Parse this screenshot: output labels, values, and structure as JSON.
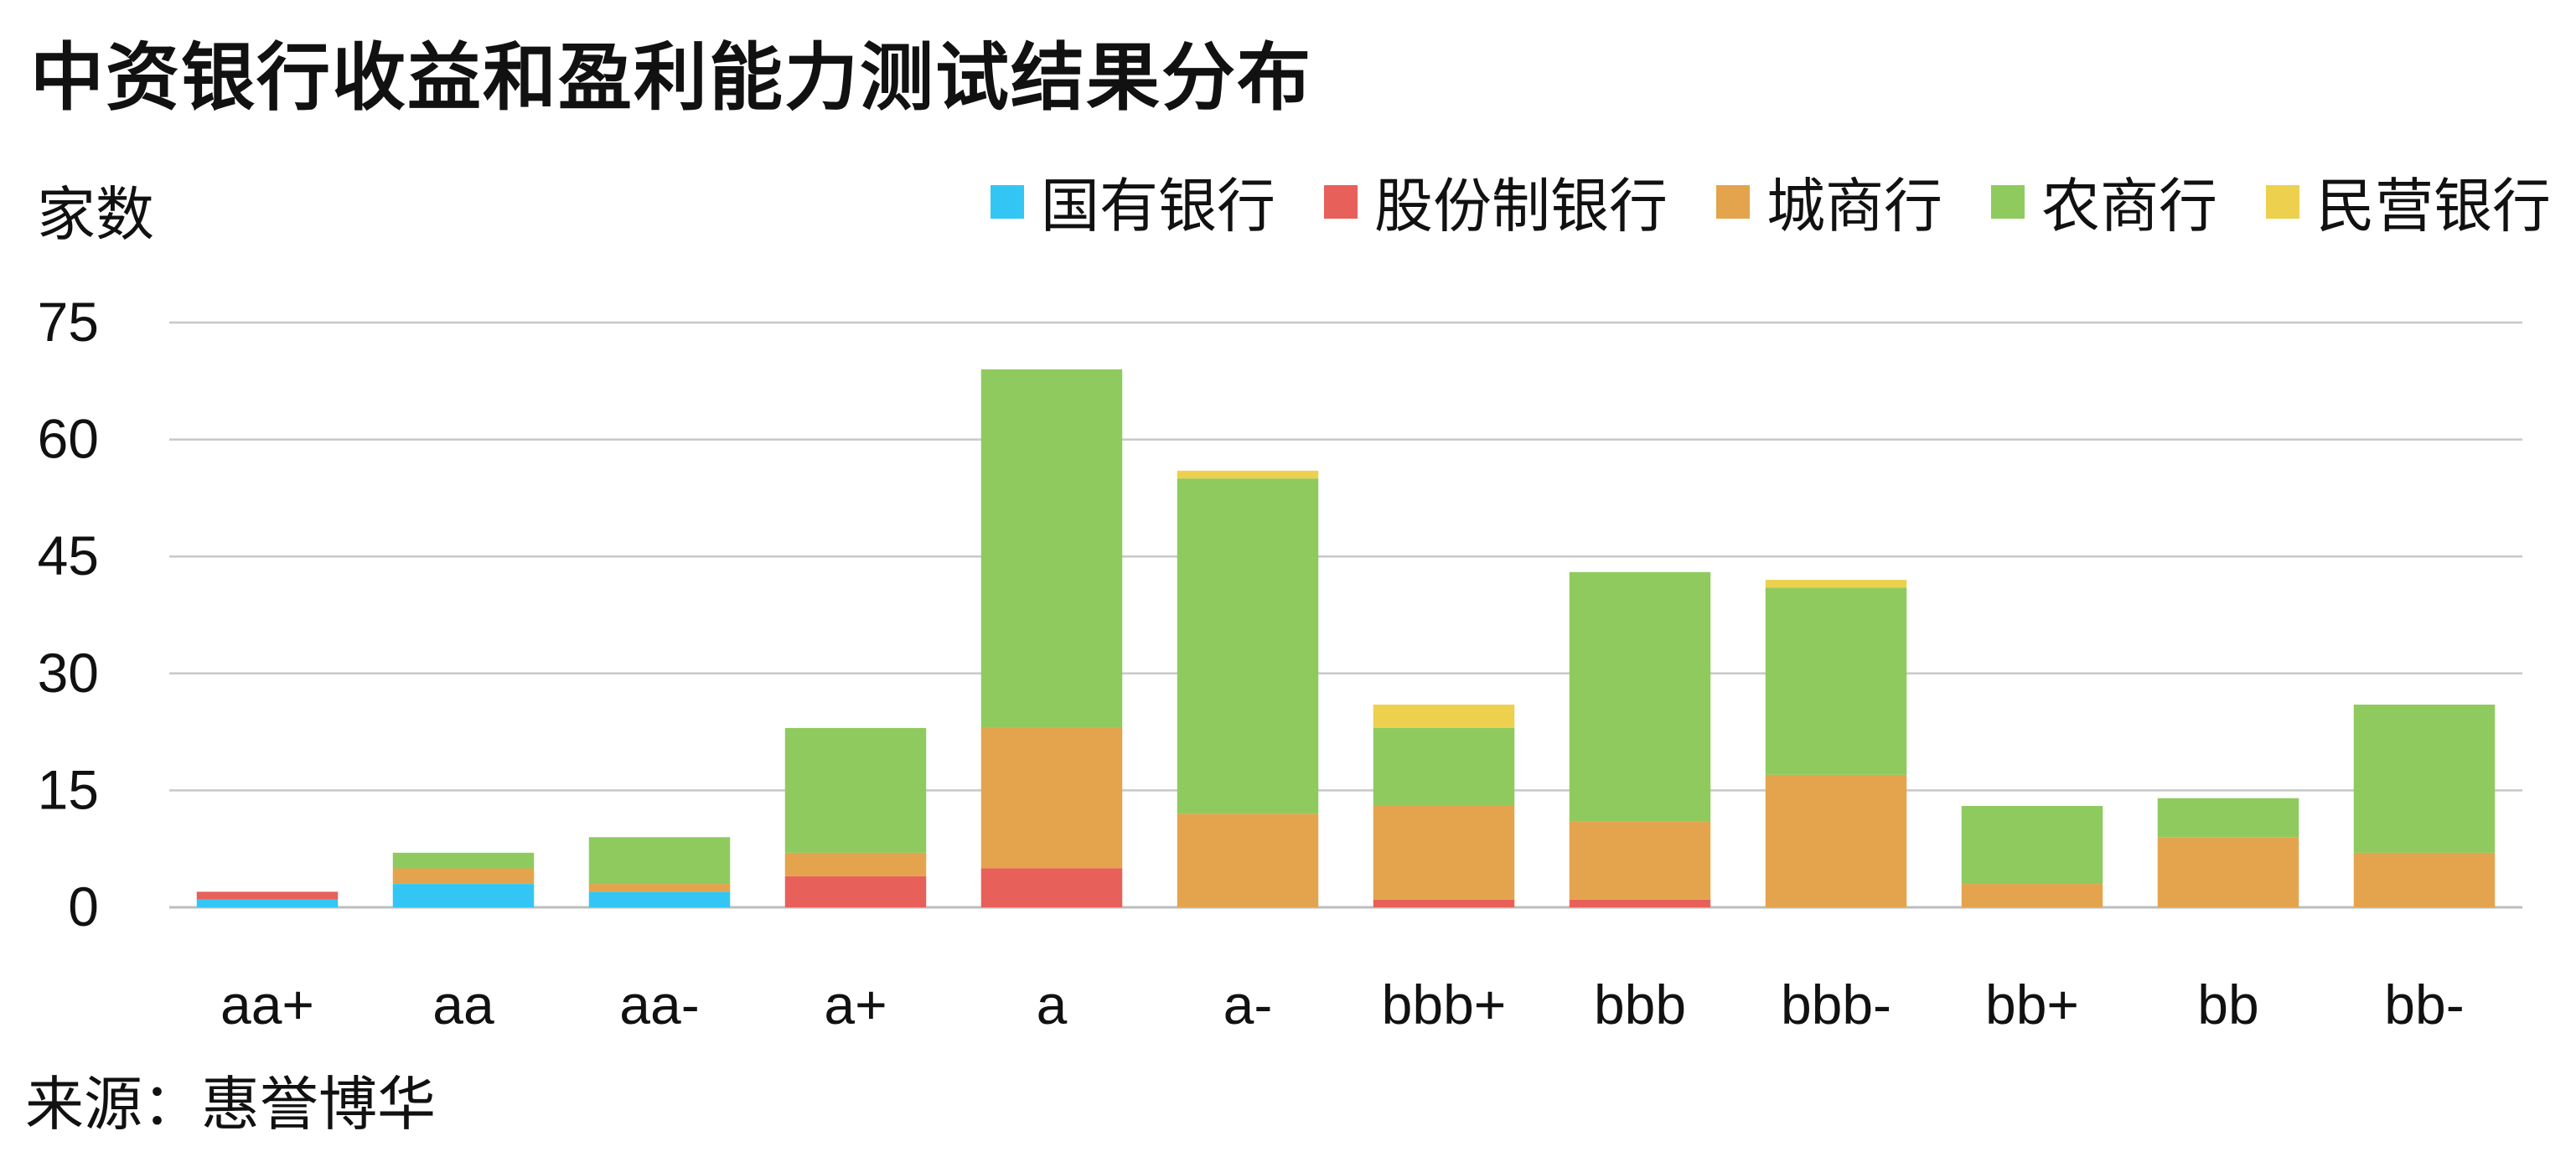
{
  "chart_data": {
    "type": "bar",
    "stacked": true,
    "title": "中资银行收益和盈利能力测试结果分布",
    "ylabel": "家数",
    "xlabel": "",
    "categories": [
      "aa+",
      "aa",
      "aa-",
      "a+",
      "a",
      "a-",
      "bbb+",
      "bbb",
      "bbb-",
      "bb+",
      "bb",
      "bb-"
    ],
    "ylim": [
      0,
      75
    ],
    "yticks": [
      0,
      15,
      30,
      45,
      60,
      75
    ],
    "grid": true,
    "legend_position": "top-right",
    "series": [
      {
        "name": "国有银行",
        "color": "#33c6f4",
        "values": [
          1,
          3,
          2,
          0,
          0,
          0,
          0,
          0,
          0,
          0,
          0,
          0
        ]
      },
      {
        "name": "股份制银行",
        "color": "#e8605a",
        "values": [
          1,
          0,
          0,
          4,
          5,
          0,
          1,
          1,
          0,
          0,
          0,
          0
        ]
      },
      {
        "name": "城商行",
        "color": "#e4a44e",
        "values": [
          0,
          2,
          1,
          3,
          18,
          12,
          12,
          10,
          17,
          3,
          9,
          7
        ]
      },
      {
        "name": "农商行",
        "color": "#8fca5e",
        "values": [
          0,
          2,
          6,
          16,
          46,
          43,
          10,
          32,
          24,
          10,
          5,
          19
        ]
      },
      {
        "name": "民营银行",
        "color": "#ecd04e",
        "values": [
          0,
          0,
          0,
          0,
          0,
          1,
          3,
          0,
          1,
          0,
          0,
          0
        ]
      }
    ]
  },
  "source": "来源：惠誉博华"
}
